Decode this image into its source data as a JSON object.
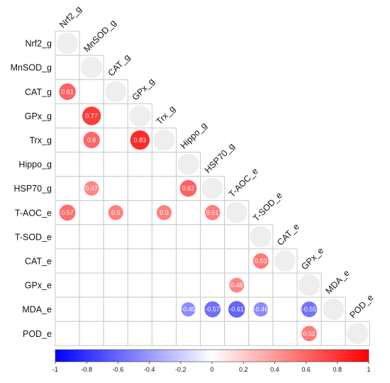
{
  "chart_data": {
    "type": "heatmap",
    "variables": [
      "Nrf2_g",
      "MnSOD_g",
      "CAT_g",
      "GPx_g",
      "Trx_g",
      "Hippo_g",
      "HSP70_g",
      "T-AOC_e",
      "T-SOD_e",
      "CAT_e",
      "GPx_e",
      "MDA_e",
      "POD_e"
    ],
    "matrix": "lower-triangular correlation",
    "diagonal_value": 1,
    "correlations": [
      {
        "row": "CAT_g",
        "col": "Nrf2_g",
        "value": 0.61
      },
      {
        "row": "GPx_g",
        "col": "MnSOD_g",
        "value": 0.77
      },
      {
        "row": "Trx_g",
        "col": "MnSOD_g",
        "value": 0.6
      },
      {
        "row": "Trx_g",
        "col": "GPx_g",
        "value": 0.83
      },
      {
        "row": "HSP70_g",
        "col": "MnSOD_g",
        "value": 0.47
      },
      {
        "row": "HSP70_g",
        "col": "Hippo_g",
        "value": 0.62
      },
      {
        "row": "T-AOC_e",
        "col": "Nrf2_g",
        "value": 0.57
      },
      {
        "row": "T-AOC_e",
        "col": "CAT_g",
        "value": 0.5
      },
      {
        "row": "T-AOC_e",
        "col": "Trx_g",
        "value": 0.5
      },
      {
        "row": "T-AOC_e",
        "col": "HSP70_g",
        "value": 0.51
      },
      {
        "row": "CAT_e",
        "col": "T-SOD_e",
        "value": 0.53
      },
      {
        "row": "GPx_e",
        "col": "T-AOC_e",
        "value": 0.48
      },
      {
        "row": "MDA_e",
        "col": "Hippo_g",
        "value": -0.45
      },
      {
        "row": "MDA_e",
        "col": "HSP70_g",
        "value": -0.57
      },
      {
        "row": "MDA_e",
        "col": "T-AOC_e",
        "value": -0.61
      },
      {
        "row": "MDA_e",
        "col": "T-SOD_e",
        "value": -0.46
      },
      {
        "row": "MDA_e",
        "col": "GPx_e",
        "value": -0.55
      },
      {
        "row": "POD_e",
        "col": "GPx_e",
        "value": 0.52
      }
    ],
    "colorbar": {
      "range": [
        -1,
        1
      ],
      "ticks": [
        "-1",
        "-0.8",
        "-0.6",
        "-0.4",
        "-0.2",
        "0",
        "0.2",
        "0.4",
        "0.6",
        "0.8",
        "1"
      ],
      "colors": {
        "negative": "#0000ff",
        "zero": "#ffffff",
        "positive": "#ff0000"
      }
    },
    "diagonal_color": "#eeeeee",
    "grid": true
  }
}
